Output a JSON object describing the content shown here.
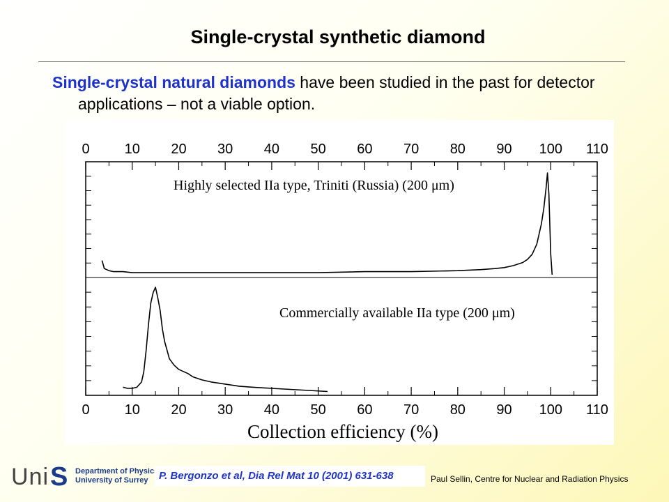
{
  "slide": {
    "title": "Single-crystal synthetic diamond",
    "intro_highlight": "Single-crystal natural diamonds",
    "intro_rest": " have been studied in the past for detector applications – not a viable option.",
    "reference": "P. Bergonzo et al, Dia Rel Mat 10 (2001) 631-638",
    "footer": "Paul Sellin, Centre for Nuclear and Radiation Physics",
    "logo": {
      "wordmark": "Uni",
      "letter": "S",
      "line1": "Department of Physics",
      "line2": "University of Surrey"
    }
  },
  "chart_data": {
    "type": "line",
    "xlabel": "Collection efficiency (%)",
    "ylabel": "",
    "xlim": [
      0,
      110
    ],
    "xticks": [
      0,
      10,
      20,
      30,
      40,
      50,
      60,
      70,
      80,
      90,
      100,
      110
    ],
    "grid": false,
    "panels": [
      {
        "label": "Highly selected IIa type, Triniti (Russia) (200 μm)",
        "ylim": [
          0,
          1
        ],
        "x": [
          3.5,
          4,
          5,
          6,
          8,
          10,
          15,
          20,
          30,
          40,
          50,
          60,
          70,
          80,
          85,
          88,
          90,
          92,
          94,
          95,
          96,
          97,
          97.5,
          98,
          98.5,
          99,
          99.3,
          99.6,
          100,
          100.3
        ],
        "values": [
          0.14,
          0.06,
          0.04,
          0.03,
          0.03,
          0.02,
          0.02,
          0.02,
          0.02,
          0.02,
          0.02,
          0.03,
          0.03,
          0.04,
          0.05,
          0.06,
          0.07,
          0.09,
          0.12,
          0.15,
          0.2,
          0.3,
          0.4,
          0.5,
          0.65,
          0.85,
          1.0,
          0.8,
          0.2,
          0.0
        ]
      },
      {
        "label": "Commercially available IIa type (200 μm)",
        "ylim": [
          0,
          1
        ],
        "x": [
          8,
          9,
          10,
          11,
          12,
          12.5,
          13,
          13.5,
          14,
          14.5,
          15,
          15.5,
          16,
          16.5,
          17,
          17.5,
          18,
          19,
          20,
          21,
          22,
          23,
          25,
          27,
          30,
          33,
          36,
          40,
          44,
          48,
          52
        ],
        "values": [
          0.05,
          0.04,
          0.04,
          0.05,
          0.1,
          0.2,
          0.4,
          0.65,
          0.85,
          0.95,
          1.0,
          0.9,
          0.78,
          0.6,
          0.48,
          0.4,
          0.32,
          0.26,
          0.22,
          0.2,
          0.18,
          0.15,
          0.12,
          0.1,
          0.08,
          0.06,
          0.05,
          0.04,
          0.03,
          0.02,
          0.01
        ]
      }
    ]
  }
}
